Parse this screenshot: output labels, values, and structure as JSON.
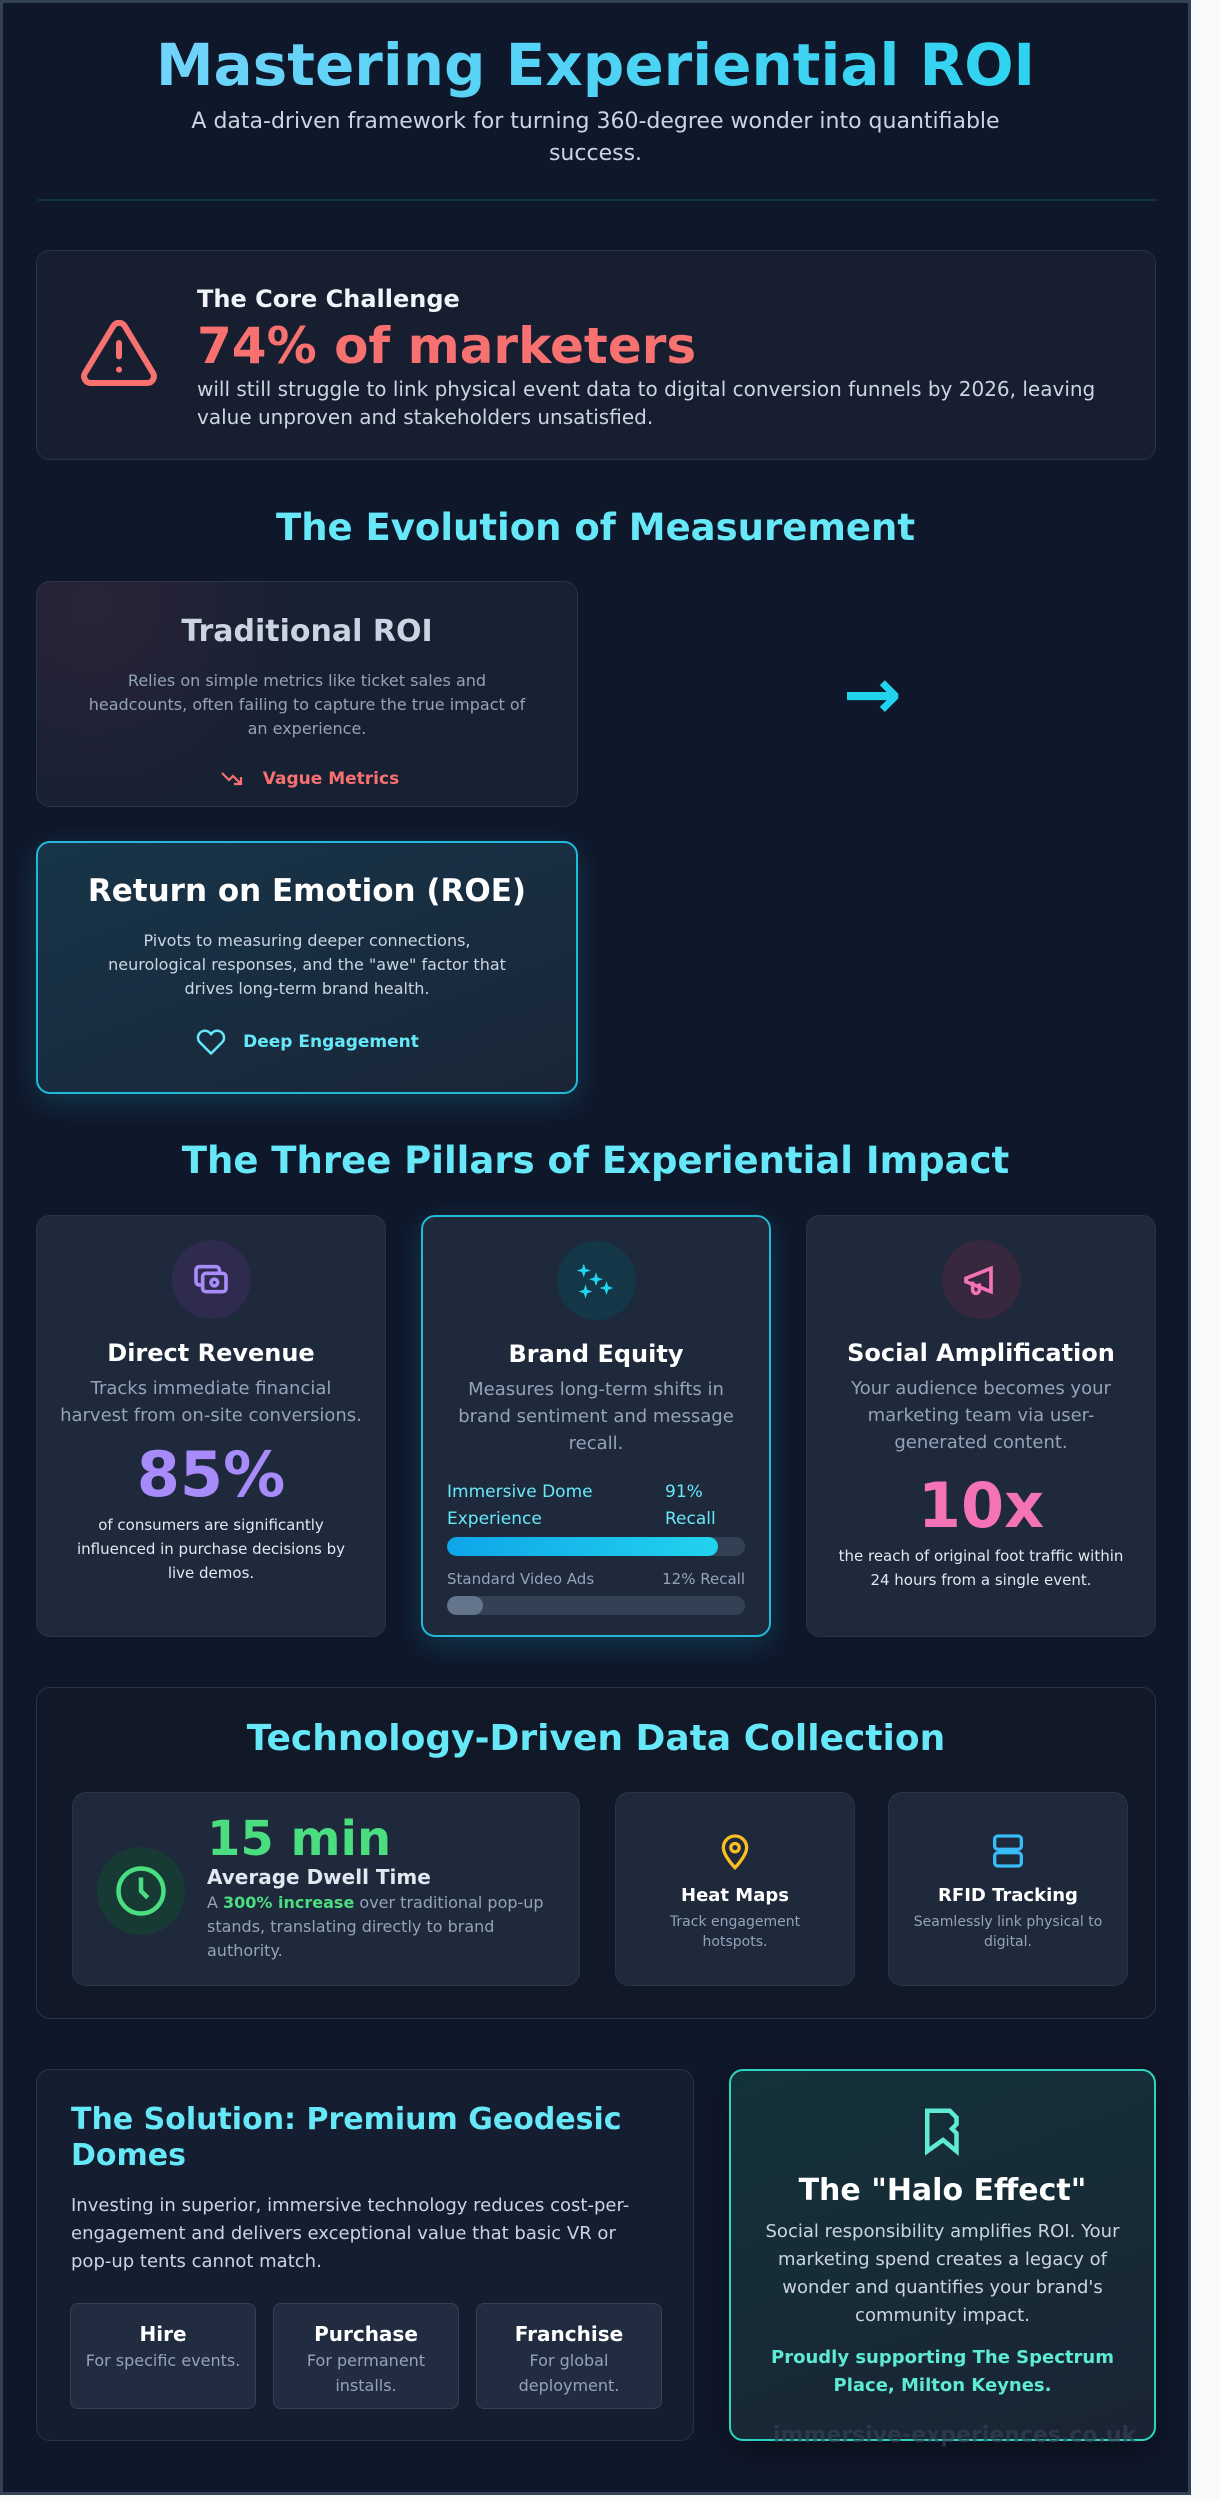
{
  "header": {
    "title": "Mastering Experiential ROI",
    "subtitle": "A data-driven framework for turning 360-degree wonder into quantifiable success."
  },
  "challenge": {
    "icon": "warning-triangle-icon",
    "label": "The Core Challenge",
    "stat": "74% of marketers",
    "text": "will still struggle to link physical event data to digital conversion funnels by 2026, leaving value unproven and stakeholders unsatisfied."
  },
  "evolution": {
    "title": "The Evolution of Measurement",
    "arrow": "→",
    "traditional": {
      "title": "Traditional ROI",
      "text": "Relies on simple metrics like ticket sales and headcounts, often failing to capture the true impact of an experience.",
      "tag": "Vague Metrics",
      "icon": "trending-down-icon"
    },
    "roe": {
      "title": "Return on Emotion (ROE)",
      "text": "Pivots to measuring deeper connections, neurological responses, and the \"awe\" factor that drives long-term brand health.",
      "tag": "Deep Engagement",
      "icon": "heart-icon"
    }
  },
  "pillars": {
    "title": "The Three Pillars of Experiential Impact",
    "items": [
      {
        "title": "Direct Revenue",
        "text": "Tracks immediate financial harvest from on-site conversions.",
        "stat": "85%",
        "caption": "of consumers are significantly influenced in purchase decisions by live demos.",
        "icon": "money-icon",
        "color": "#a78bfa"
      },
      {
        "title": "Brand Equity",
        "text": "Measures long-term shifts in brand sentiment and message recall.",
        "icon": "sparkles-icon",
        "color": "#22d3ee",
        "bars": [
          {
            "label": "Immersive Dome Experience",
            "value_label": "91% Recall",
            "value": 91
          },
          {
            "label": "Standard Video Ads",
            "value_label": "12% Recall",
            "value": 12
          }
        ]
      },
      {
        "title": "Social Amplification",
        "text": "Your audience becomes your marketing team via user-generated content.",
        "stat": "10x",
        "caption": "the reach of original foot traffic within 24 hours from a single event.",
        "icon": "megaphone-icon",
        "color": "#f472b6"
      }
    ]
  },
  "tech": {
    "title": "Technology-Driven Data Collection",
    "dwell": {
      "stat": "15 min",
      "label": "Average Dwell Time",
      "pre": "A ",
      "highlight": "300% increase",
      "post": " over traditional pop-up stands, translating directly to brand authority.",
      "icon": "clock-icon"
    },
    "heat": {
      "title": "Heat Maps",
      "text": "Track engagement hotspots.",
      "icon": "map-pin-icon"
    },
    "rfid": {
      "title": "RFID Tracking",
      "text": "Seamlessly link physical to digital.",
      "icon": "server-icon"
    }
  },
  "solution": {
    "title": "The Solution: Premium Geodesic Domes",
    "text": "Investing in superior, immersive technology reduces cost-per-engagement and delivers exceptional value that basic VR or pop-up tents cannot match.",
    "options": [
      {
        "title": "Hire",
        "text": "For specific events."
      },
      {
        "title": "Purchase",
        "text": "For permanent installs."
      },
      {
        "title": "Franchise",
        "text": "For global deployment."
      }
    ]
  },
  "halo": {
    "icon": "award-ribbon-icon",
    "title": "The \"Halo Effect\"",
    "text": "Social responsibility amplifies ROI. Your marketing spend creates a legacy of wonder and quantifies your brand's community impact.",
    "support": "Proudly supporting The Spectrum Place, Milton Keynes."
  },
  "footer": {
    "watermark": "immersive-experiences.co.uk"
  }
}
